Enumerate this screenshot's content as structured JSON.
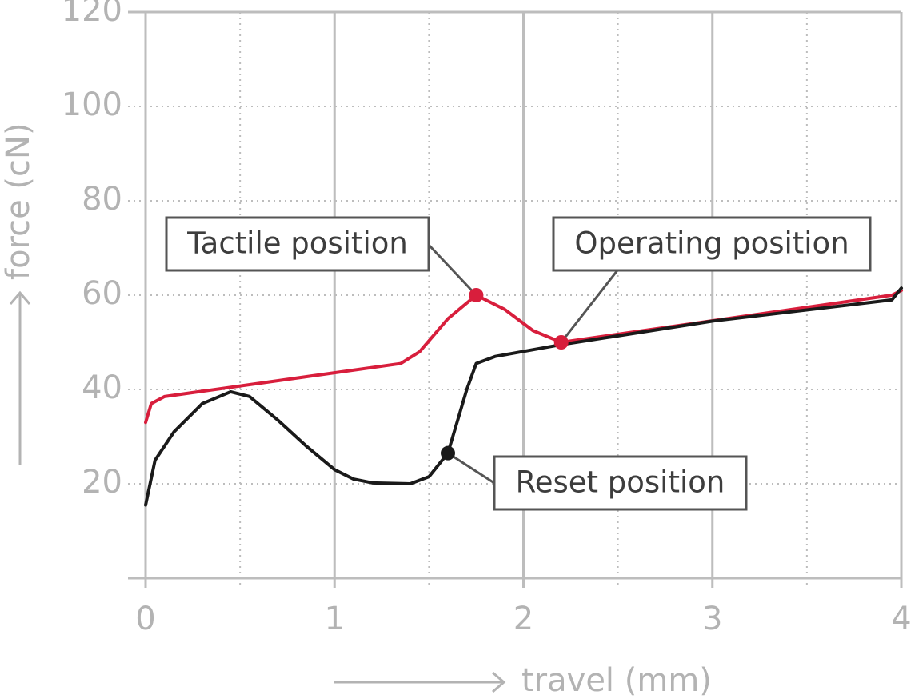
{
  "chart_data": {
    "type": "line",
    "x_label": "travel (mm)",
    "y_label": "force (cN)",
    "xlim": [
      0,
      4
    ],
    "xticks": [
      0,
      1,
      2,
      3,
      4
    ],
    "ylim": [
      0,
      120
    ],
    "yticks": [
      20,
      40,
      60,
      80,
      100,
      120
    ],
    "grid": true,
    "series": [
      {
        "color": "#d81e3c",
        "x": [
          0,
          0.03,
          0.1,
          1.35,
          1.45,
          1.6,
          1.75,
          1.9,
          2.05,
          2.2,
          3.95,
          4
        ],
        "values": [
          33,
          37,
          38.5,
          45.5,
          48,
          55,
          60,
          57,
          52.5,
          50,
          60,
          61
        ]
      },
      {
        "color": "#1a1a1a",
        "x": [
          0,
          0.05,
          0.15,
          0.3,
          0.45,
          0.55,
          0.7,
          0.85,
          1,
          1.1,
          1.2,
          1.4,
          1.5,
          1.6,
          1.7,
          1.75,
          1.85,
          2.2,
          3,
          3.95,
          4
        ],
        "values": [
          15.5,
          25,
          31,
          37,
          39.5,
          38.5,
          33.5,
          28,
          23,
          21,
          20.2,
          20,
          21.5,
          26.5,
          40,
          45.5,
          47,
          49.5,
          54.5,
          59,
          61.5
        ]
      }
    ],
    "annotations": [
      {
        "text": "Tactile position",
        "x": 1.75,
        "y": 60,
        "color": "#d81e3c"
      },
      {
        "text": "Operating position",
        "x": 2.2,
        "y": 50,
        "color": "#d81e3c"
      },
      {
        "text": "Reset position",
        "x": 1.6,
        "y": 26.5,
        "color": "#1a1a1a"
      }
    ]
  }
}
